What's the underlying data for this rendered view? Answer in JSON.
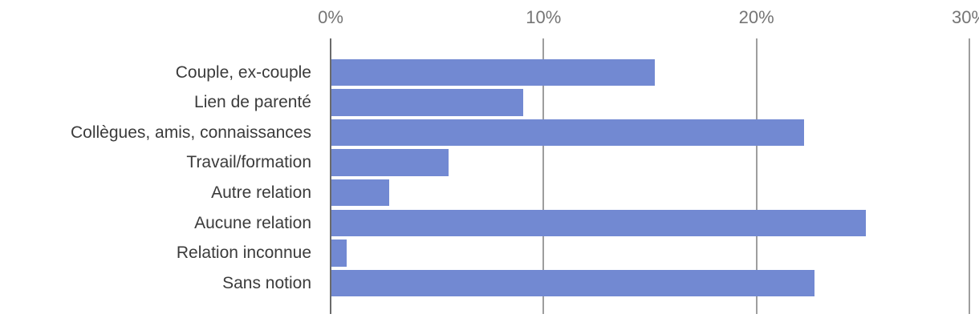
{
  "chart_data": {
    "type": "bar",
    "orientation": "horizontal",
    "title": "",
    "xlabel": "",
    "ylabel": "",
    "categories": [
      "Couple, ex-couple",
      "Lien de parenté",
      "Collègues, amis, connaissances",
      "Travail/formation",
      "Autre relation",
      "Aucune relation",
      "Relation inconnue",
      "Sans notion"
    ],
    "values": [
      15.2,
      9.0,
      22.2,
      5.5,
      2.7,
      25.1,
      0.7,
      22.7
    ],
    "value_unit": "%",
    "xlim": [
      0,
      30
    ],
    "x_ticks": [
      0,
      10,
      20,
      30
    ],
    "x_tick_labels": [
      "0%",
      "10%",
      "20%",
      "30%"
    ],
    "axis_position": "top",
    "grid": true,
    "legend": "none"
  },
  "colors": {
    "bar_fill": "#7289d2",
    "axis_line": "#6b6b6b",
    "gridline": "#9e9e9e",
    "tick_label_text": "#757575",
    "category_label_text": "#3b3b3b",
    "background": "#ffffff"
  }
}
